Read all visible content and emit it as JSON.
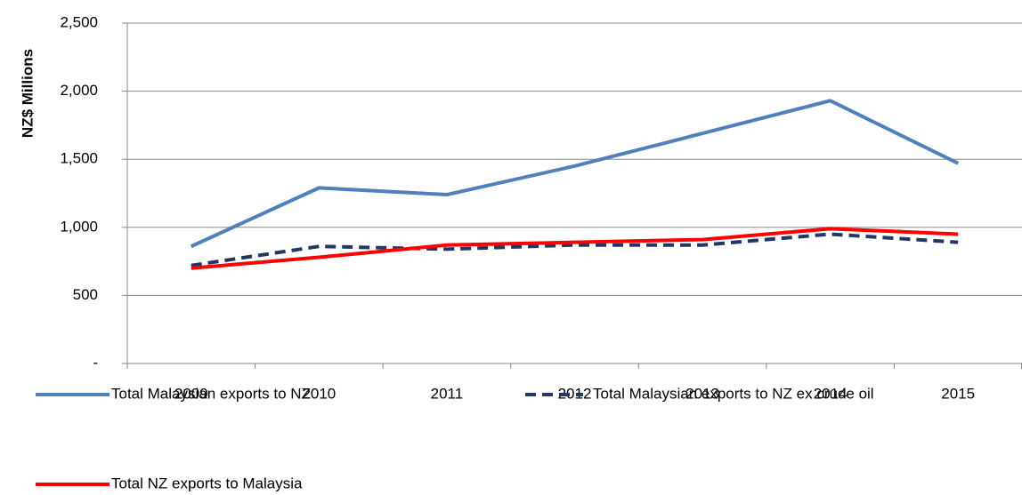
{
  "chart_data": {
    "type": "line",
    "y_label": "NZ$ Millions",
    "categories": [
      "2009",
      "2010",
      "2011",
      "2012",
      "2013",
      "2014",
      "2015"
    ],
    "series": [
      {
        "name": "Total Malaysian exports to NZ",
        "color": "#4f81bd",
        "dash": false,
        "values": [
          860,
          1290,
          1240,
          1450,
          1690,
          1930,
          1470
        ]
      },
      {
        "name": "Total Malaysian exports to NZ ex crude oil",
        "color": "#1f3864",
        "dash": true,
        "values": [
          720,
          860,
          840,
          870,
          870,
          950,
          890
        ]
      },
      {
        "name": "Total NZ exports to Malaysia",
        "color": "#ff0000",
        "dash": false,
        "values": [
          700,
          780,
          870,
          890,
          910,
          990,
          950
        ]
      }
    ],
    "ylim": [
      0,
      2500
    ],
    "yticks": [
      {
        "value": 0,
        "label": "-"
      },
      500,
      {
        "value": 1000,
        "label": "1,000"
      },
      {
        "value": 1500,
        "label": "1,500"
      },
      {
        "value": 2000,
        "label": "2,000"
      },
      {
        "value": 2500,
        "label": "2,500"
      }
    ],
    "grid": true
  }
}
